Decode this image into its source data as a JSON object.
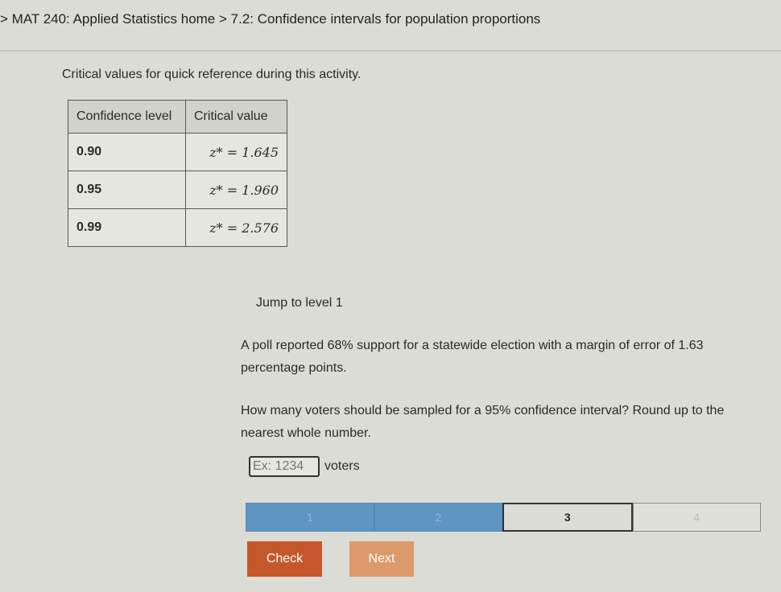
{
  "breadcrumb": {
    "course": "MAT 240: Applied Statistics home",
    "sep": ">",
    "section": "7.2: Confidence intervals for population proportions"
  },
  "intro": "Critical values for quick reference during this activity.",
  "table": {
    "headers": [
      "Confidence level",
      "Critical value"
    ],
    "rows": [
      [
        "0.90",
        "z* = 1.645"
      ],
      [
        "0.95",
        "z* = 1.960"
      ],
      [
        "0.99",
        "z* = 2.576"
      ]
    ]
  },
  "jump": "Jump to level 1",
  "question": {
    "p1": "A poll reported 68% support for a statewide election with a margin of error of 1.63 percentage points.",
    "p2": "How many voters should be sampled for a 95% confidence interval? Round up to the nearest whole number."
  },
  "answer": {
    "placeholder": "Ex: 1234",
    "unit": "voters"
  },
  "levels": [
    "1",
    "2",
    "3",
    "4"
  ],
  "buttons": {
    "check": "Check",
    "next": "Next"
  },
  "colors": {
    "check": "#c4582a",
    "next": "#dc9a6c",
    "level_done": "#5f95c2"
  }
}
